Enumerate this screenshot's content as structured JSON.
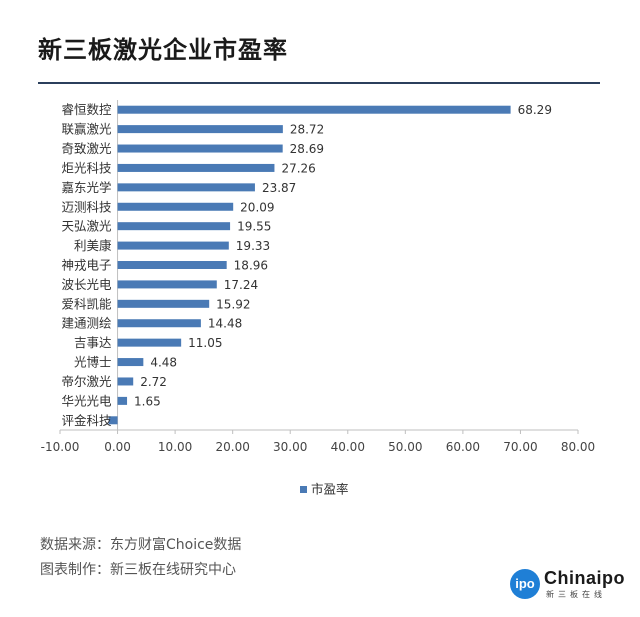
{
  "header": {
    "title": "新三板激光企业市盈率"
  },
  "chart_data": {
    "type": "bar",
    "orientation": "horizontal",
    "categories": [
      "睿恒数控",
      "联赢激光",
      "奇致激光",
      "炬光科技",
      "嘉东光学",
      "迈测科技",
      "天弘激光",
      "利美康",
      "神戎电子",
      "波长光电",
      "爱科凯能",
      "建通测绘",
      "吉事达",
      "光博士",
      "帝尔激光",
      "华光光电",
      "评金科技"
    ],
    "series": [
      {
        "name": "市盈率",
        "values": [
          68.29,
          28.72,
          28.69,
          27.26,
          23.87,
          20.09,
          19.55,
          19.33,
          18.96,
          17.24,
          15.92,
          14.48,
          11.05,
          4.48,
          2.72,
          1.65,
          -1.56
        ],
        "labels": [
          "68.29",
          "28.72",
          "28.69",
          "27.26",
          "23.87",
          "20.09",
          "19.55",
          "19.33",
          "18.96",
          "17.24",
          "15.92",
          "14.48",
          "11.05",
          "4.48",
          "2.72",
          "1.65",
          ""
        ]
      }
    ],
    "x_ticks": [
      "-10.00",
      "0.00",
      "10.00",
      "20.00",
      "30.00",
      "40.00",
      "50.00",
      "60.00",
      "70.00",
      "80.00"
    ],
    "xlim": [
      -10,
      80
    ],
    "legend_position": "bottom",
    "grid": false,
    "bar_color": "#4a7ab5"
  },
  "footer": {
    "source": "数据来源：东方财富Choice数据",
    "made_by": "图表制作：新三板在线研究中心"
  },
  "logo": {
    "word": "Chinaipo",
    "badge": "ipo",
    "sub": "新三板在线"
  }
}
